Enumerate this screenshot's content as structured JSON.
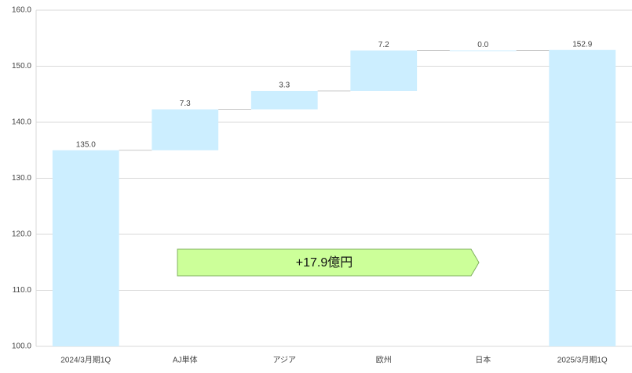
{
  "chart_data": {
    "type": "waterfall",
    "categories": [
      "2024/3月期1Q",
      "AJ単体",
      "アジア",
      "欧州",
      "日本",
      "2025/3月期1Q"
    ],
    "values": [
      135.0,
      7.3,
      3.3,
      7.2,
      0.0,
      152.9
    ],
    "value_labels": [
      "135.0",
      "7.3",
      "3.3",
      "7.2",
      "0.0",
      "152.9"
    ],
    "color": "#cceeff",
    "ylim": [
      100,
      160
    ],
    "yticks": [
      {
        "value": 100,
        "label": "100.0"
      },
      {
        "value": 110,
        "label": "110.0"
      },
      {
        "value": 120,
        "label": "120.0"
      },
      {
        "value": 130,
        "label": "130.0"
      },
      {
        "value": 140,
        "label": "140.0"
      },
      {
        "value": 150,
        "label": "150.0"
      },
      {
        "value": 160,
        "label": "160.0"
      }
    ],
    "grid": true,
    "annotation": "+17.9億円"
  }
}
